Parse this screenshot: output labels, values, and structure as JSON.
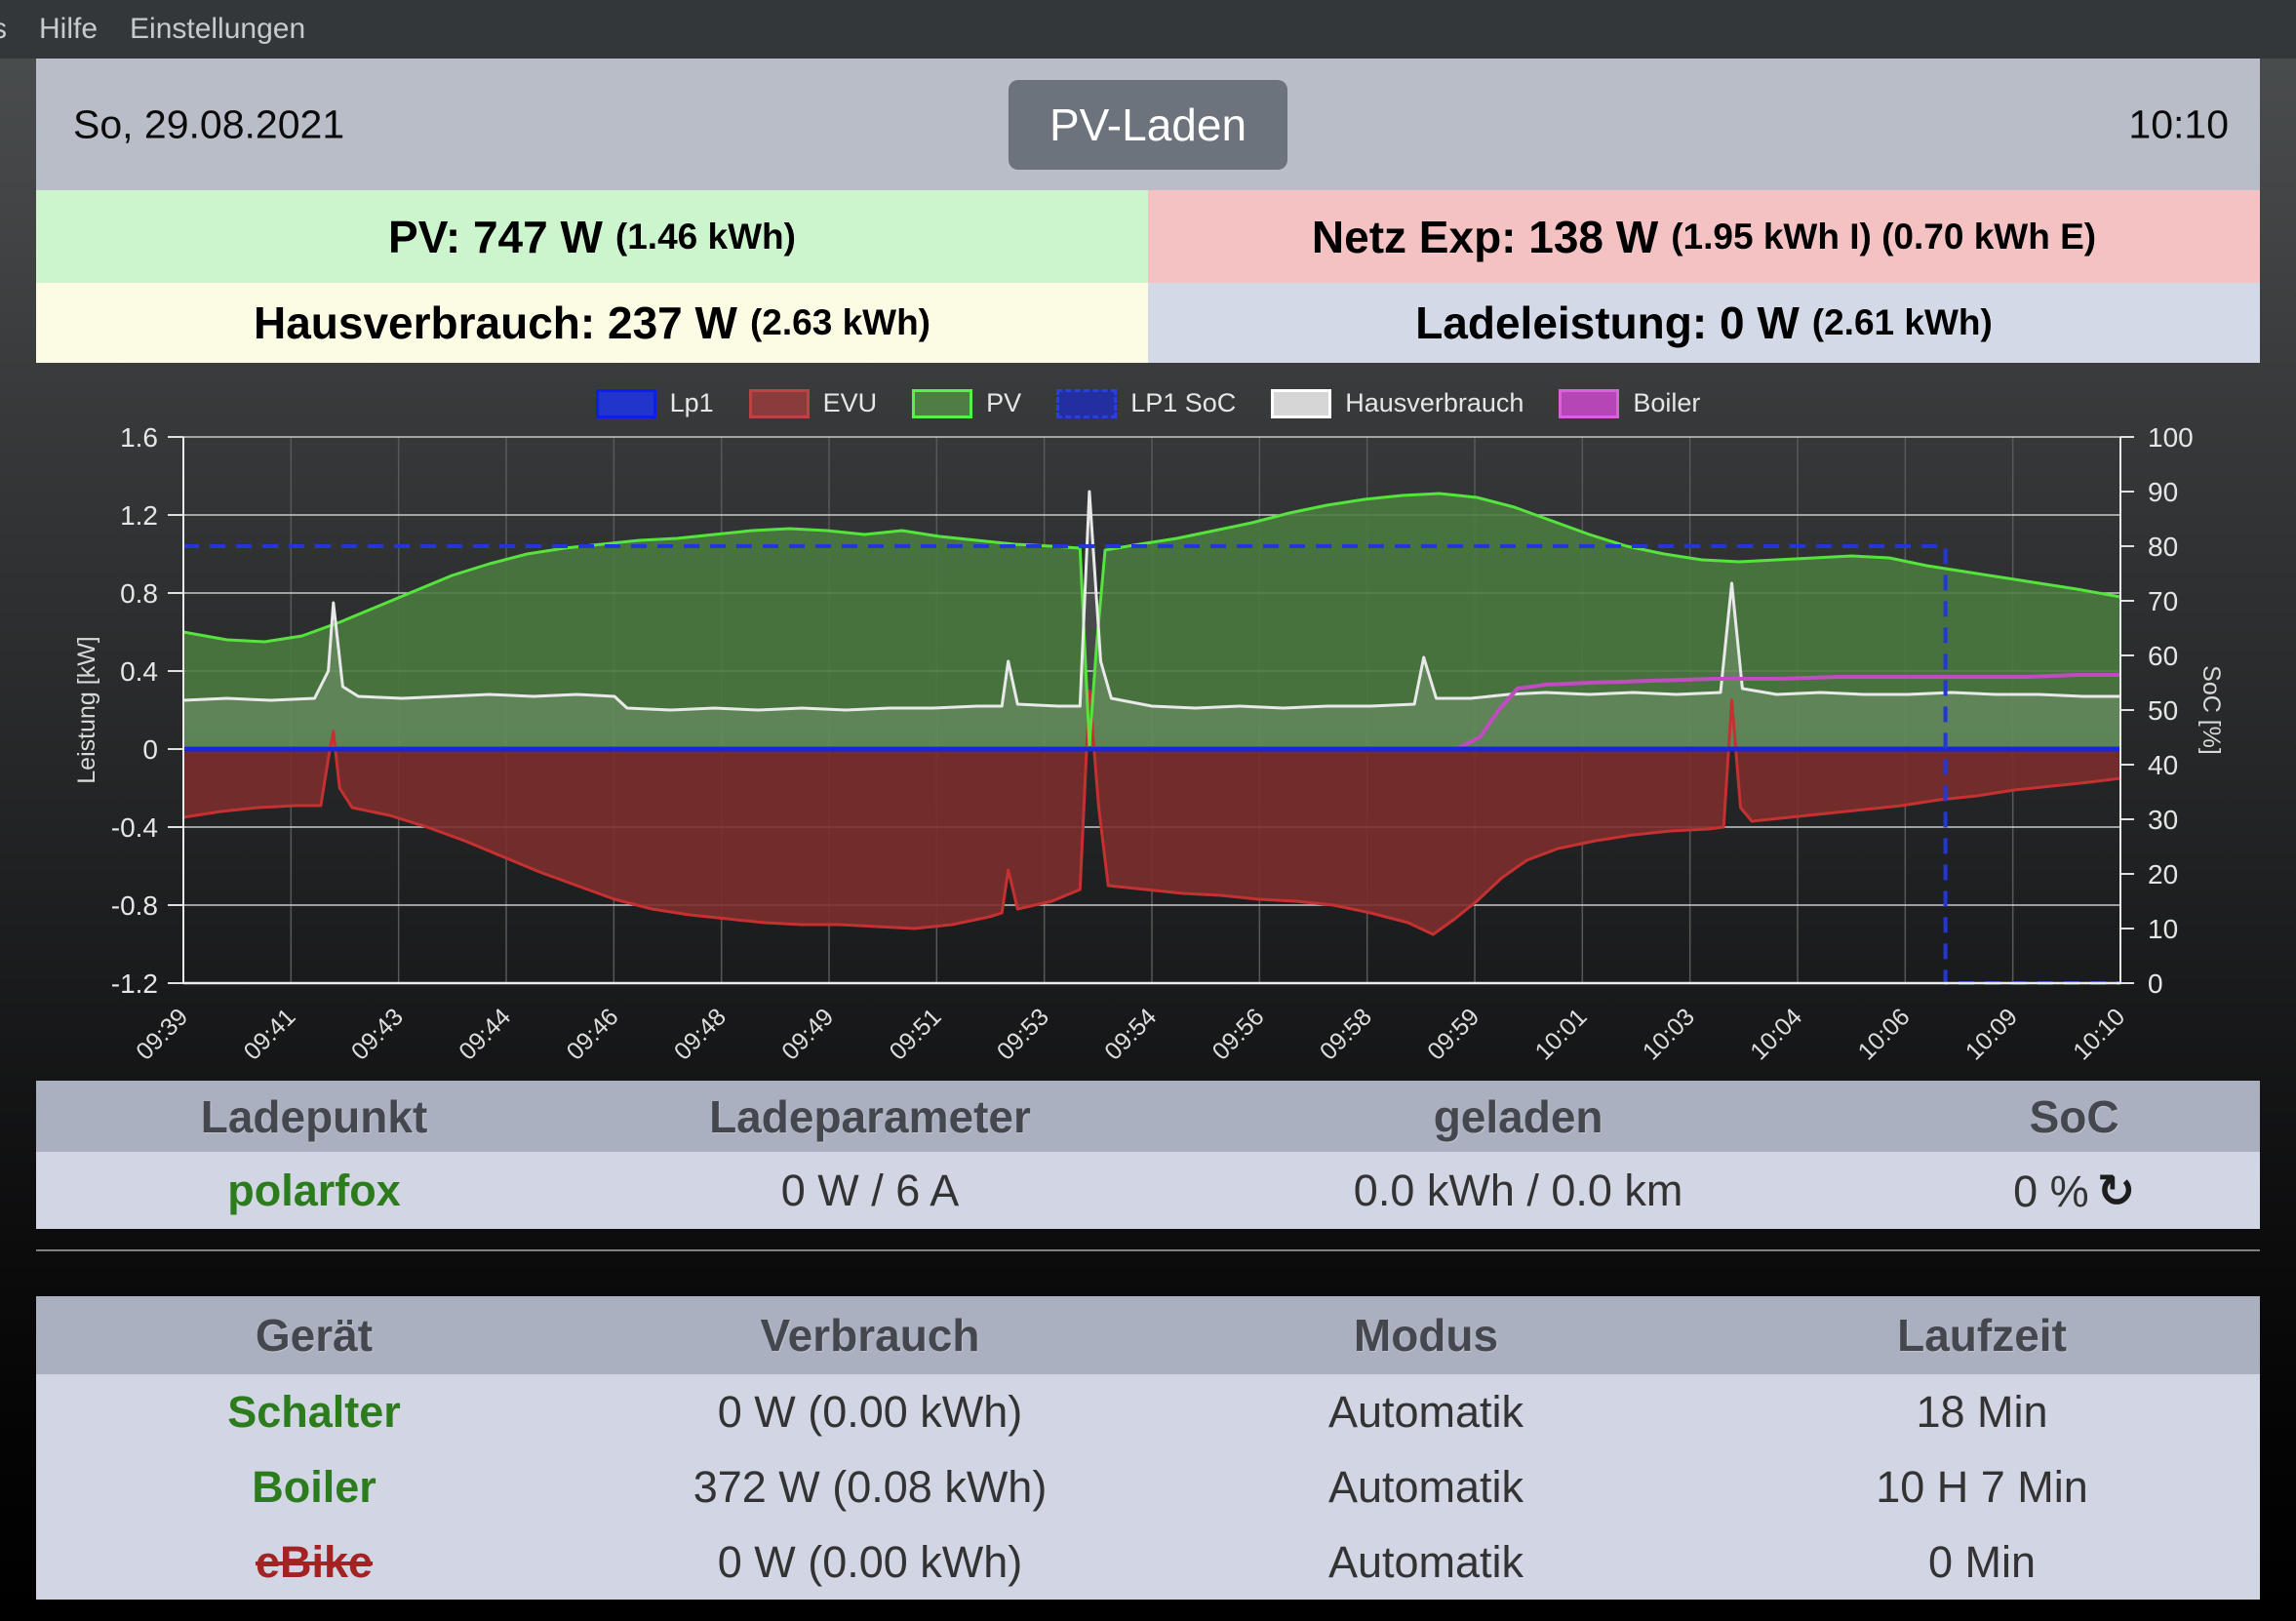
{
  "menubar": {
    "items": [
      "s",
      "Hilfe",
      "Einstellungen"
    ]
  },
  "header": {
    "date": "So, 29.08.2021",
    "mode_button": "PV-Laden",
    "time": "10:10"
  },
  "status": {
    "pv": {
      "main": "PV: 747 W",
      "sub": "(1.46 kWh)",
      "bg": "#ccf5cd"
    },
    "grid": {
      "main": "Netz Exp: 138 W",
      "sub": "(1.95 kWh I) (0.70 kWh E)",
      "bg": "#f4c2c3"
    },
    "house": {
      "main": "Hausverbrauch: 237 W",
      "sub": "(2.63 kWh)",
      "bg": "#fcfbe3"
    },
    "charge": {
      "main": "Ladeleistung: 0 W",
      "sub": "(2.61 kWh)",
      "bg": "#d3d9e7"
    }
  },
  "chart_data": {
    "type": "line",
    "x_labels": [
      "09:39",
      "09:41",
      "09:43",
      "09:44",
      "09:46",
      "09:48",
      "09:49",
      "09:51",
      "09:53",
      "09:54",
      "09:56",
      "09:58",
      "09:59",
      "10:01",
      "10:03",
      "10:04",
      "10:06",
      "10:09",
      "10:10"
    ],
    "x_range_minutes": [
      0,
      31
    ],
    "y_left": {
      "label": "Leistung [kW]",
      "min": -1.2,
      "max": 1.6,
      "ticks": [
        1.6,
        1.2,
        0.8,
        0.4,
        0,
        -0.4,
        -0.8,
        -1.2
      ]
    },
    "y_right": {
      "label": "SoC [%]",
      "min": 0,
      "max": 100,
      "ticks": [
        100,
        90,
        80,
        70,
        60,
        50,
        40,
        30,
        20,
        10,
        0
      ]
    },
    "grid": {
      "h_color": "#c9c9c9",
      "v_color": "#585858",
      "frame_color": "#ececec"
    },
    "legend": [
      {
        "label": "Lp1",
        "fill": "#2134cc",
        "border": "#0b1fe6",
        "dash": false
      },
      {
        "label": "EVU",
        "fill": "#8a3b3b",
        "border": "#bb4343",
        "dash": false
      },
      {
        "label": "PV",
        "fill": "#4f7d45",
        "border": "#55f24a",
        "dash": false
      },
      {
        "label": "LP1 SoC",
        "fill": "#232f9e",
        "border": "#2a3fe0",
        "dash": true
      },
      {
        "label": "Hausverbrauch",
        "fill": "#d6d6d6",
        "border": "#ffffff",
        "dash": false
      },
      {
        "label": "Boiler",
        "fill": "#b646b6",
        "border": "#d863d8",
        "dash": false
      }
    ],
    "series": [
      {
        "name": "EVU",
        "axis": "left",
        "draw": "area",
        "line_color": "#c53131",
        "line_width": 3,
        "fill_color": "#7c2e2e",
        "fill_opacity": 0.9,
        "points": [
          [
            0,
            -0.35
          ],
          [
            0.6,
            -0.32
          ],
          [
            1.2,
            -0.3
          ],
          [
            1.8,
            -0.29
          ],
          [
            2.2,
            -0.29
          ],
          [
            2.32,
            -0.05
          ],
          [
            2.4,
            0.09
          ],
          [
            2.5,
            -0.2
          ],
          [
            2.7,
            -0.3
          ],
          [
            3.3,
            -0.34
          ],
          [
            3.9,
            -0.4
          ],
          [
            4.5,
            -0.47
          ],
          [
            5.1,
            -0.55
          ],
          [
            5.7,
            -0.63
          ],
          [
            6.3,
            -0.7
          ],
          [
            6.9,
            -0.77
          ],
          [
            7.5,
            -0.82
          ],
          [
            8.1,
            -0.85
          ],
          [
            8.7,
            -0.87
          ],
          [
            9.3,
            -0.89
          ],
          [
            9.9,
            -0.9
          ],
          [
            10.5,
            -0.9
          ],
          [
            11.1,
            -0.91
          ],
          [
            11.7,
            -0.92
          ],
          [
            12.3,
            -0.9
          ],
          [
            12.9,
            -0.86
          ],
          [
            13.1,
            -0.84
          ],
          [
            13.2,
            -0.62
          ],
          [
            13.35,
            -0.82
          ],
          [
            13.9,
            -0.78
          ],
          [
            14.35,
            -0.72
          ],
          [
            14.5,
            0.3
          ],
          [
            14.65,
            -0.3
          ],
          [
            14.8,
            -0.7
          ],
          [
            15.4,
            -0.72
          ],
          [
            16,
            -0.74
          ],
          [
            16.6,
            -0.75
          ],
          [
            17.2,
            -0.77
          ],
          [
            17.8,
            -0.78
          ],
          [
            18.4,
            -0.8
          ],
          [
            19,
            -0.84
          ],
          [
            19.6,
            -0.89
          ],
          [
            20,
            -0.95
          ],
          [
            20.35,
            -0.87
          ],
          [
            20.7,
            -0.78
          ],
          [
            21.1,
            -0.66
          ],
          [
            21.5,
            -0.57
          ],
          [
            22,
            -0.51
          ],
          [
            22.6,
            -0.47
          ],
          [
            23.2,
            -0.44
          ],
          [
            23.8,
            -0.42
          ],
          [
            24.4,
            -0.41
          ],
          [
            24.65,
            -0.4
          ],
          [
            24.78,
            0.25
          ],
          [
            24.92,
            -0.3
          ],
          [
            25.1,
            -0.37
          ],
          [
            25.7,
            -0.35
          ],
          [
            26.3,
            -0.33
          ],
          [
            26.9,
            -0.31
          ],
          [
            27.5,
            -0.29
          ],
          [
            28.1,
            -0.26
          ],
          [
            28.7,
            -0.24
          ],
          [
            29.3,
            -0.21
          ],
          [
            29.9,
            -0.19
          ],
          [
            30.5,
            -0.17
          ],
          [
            31,
            -0.15
          ]
        ]
      },
      {
        "name": "PV",
        "axis": "left",
        "draw": "area",
        "line_color": "#56e33e",
        "line_width": 3,
        "fill_color": "#4a7a40",
        "fill_opacity": 0.9,
        "points": [
          [
            0,
            0.6
          ],
          [
            0.7,
            0.56
          ],
          [
            1.3,
            0.55
          ],
          [
            1.9,
            0.58
          ],
          [
            2.5,
            0.65
          ],
          [
            3.1,
            0.73
          ],
          [
            3.7,
            0.81
          ],
          [
            4.3,
            0.89
          ],
          [
            4.9,
            0.95
          ],
          [
            5.5,
            1.0
          ],
          [
            6.1,
            1.03
          ],
          [
            6.7,
            1.05
          ],
          [
            7.3,
            1.07
          ],
          [
            7.9,
            1.08
          ],
          [
            8.5,
            1.1
          ],
          [
            9.1,
            1.12
          ],
          [
            9.7,
            1.13
          ],
          [
            10.3,
            1.12
          ],
          [
            10.9,
            1.1
          ],
          [
            11.5,
            1.12
          ],
          [
            12.1,
            1.09
          ],
          [
            12.7,
            1.07
          ],
          [
            13.3,
            1.05
          ],
          [
            13.9,
            1.04
          ],
          [
            14.35,
            1.03
          ],
          [
            14.5,
            0.02
          ],
          [
            14.62,
            0.55
          ],
          [
            14.75,
            1.02
          ],
          [
            15.3,
            1.05
          ],
          [
            15.9,
            1.08
          ],
          [
            16.5,
            1.12
          ],
          [
            17.1,
            1.16
          ],
          [
            17.7,
            1.21
          ],
          [
            18.3,
            1.25
          ],
          [
            18.9,
            1.28
          ],
          [
            19.5,
            1.3
          ],
          [
            20.1,
            1.31
          ],
          [
            20.7,
            1.29
          ],
          [
            21.3,
            1.24
          ],
          [
            21.9,
            1.17
          ],
          [
            22.5,
            1.1
          ],
          [
            23.1,
            1.04
          ],
          [
            23.7,
            1.0
          ],
          [
            24.3,
            0.97
          ],
          [
            24.9,
            0.96
          ],
          [
            25.5,
            0.97
          ],
          [
            26.1,
            0.98
          ],
          [
            26.7,
            0.99
          ],
          [
            27.3,
            0.98
          ],
          [
            27.9,
            0.94
          ],
          [
            28.5,
            0.91
          ],
          [
            29.1,
            0.88
          ],
          [
            29.7,
            0.85
          ],
          [
            30.3,
            0.82
          ],
          [
            31,
            0.78
          ]
        ]
      },
      {
        "name": "Hausverbrauch",
        "axis": "left",
        "draw": "area",
        "line_color": "#e9e9e9",
        "line_width": 3,
        "fill_color": "#ffffff",
        "fill_opacity": 0.13,
        "points": [
          [
            0,
            0.25
          ],
          [
            0.7,
            0.26
          ],
          [
            1.4,
            0.25
          ],
          [
            2.1,
            0.26
          ],
          [
            2.32,
            0.4
          ],
          [
            2.4,
            0.75
          ],
          [
            2.55,
            0.32
          ],
          [
            2.8,
            0.27
          ],
          [
            3.5,
            0.26
          ],
          [
            4.2,
            0.27
          ],
          [
            4.9,
            0.28
          ],
          [
            5.6,
            0.27
          ],
          [
            6.3,
            0.28
          ],
          [
            6.9,
            0.27
          ],
          [
            7.1,
            0.21
          ],
          [
            7.8,
            0.2
          ],
          [
            8.5,
            0.21
          ],
          [
            9.2,
            0.2
          ],
          [
            9.9,
            0.21
          ],
          [
            10.6,
            0.2
          ],
          [
            11.3,
            0.21
          ],
          [
            12,
            0.21
          ],
          [
            12.7,
            0.22
          ],
          [
            13.1,
            0.22
          ],
          [
            13.2,
            0.45
          ],
          [
            13.35,
            0.23
          ],
          [
            14,
            0.22
          ],
          [
            14.35,
            0.22
          ],
          [
            14.5,
            1.32
          ],
          [
            14.68,
            0.45
          ],
          [
            14.85,
            0.26
          ],
          [
            15.5,
            0.22
          ],
          [
            16.2,
            0.21
          ],
          [
            16.9,
            0.22
          ],
          [
            17.6,
            0.21
          ],
          [
            18.3,
            0.22
          ],
          [
            19,
            0.22
          ],
          [
            19.7,
            0.23
          ],
          [
            19.85,
            0.47
          ],
          [
            20.05,
            0.26
          ],
          [
            20.6,
            0.26
          ],
          [
            21.2,
            0.28
          ],
          [
            21.8,
            0.29
          ],
          [
            22.5,
            0.28
          ],
          [
            23.2,
            0.29
          ],
          [
            23.9,
            0.28
          ],
          [
            24.6,
            0.29
          ],
          [
            24.78,
            0.85
          ],
          [
            24.95,
            0.31
          ],
          [
            25.5,
            0.28
          ],
          [
            26.2,
            0.29
          ],
          [
            26.9,
            0.28
          ],
          [
            27.6,
            0.28
          ],
          [
            28.3,
            0.29
          ],
          [
            29,
            0.28
          ],
          [
            29.7,
            0.28
          ],
          [
            30.4,
            0.27
          ],
          [
            31,
            0.27
          ]
        ]
      },
      {
        "name": "Boiler",
        "axis": "left",
        "draw": "line",
        "line_color": "#bf4dbf",
        "line_width": 4,
        "points": [
          [
            0,
            0.005
          ],
          [
            20.4,
            0.005
          ],
          [
            20.75,
            0.06
          ],
          [
            21.05,
            0.2
          ],
          [
            21.35,
            0.31
          ],
          [
            21.8,
            0.33
          ],
          [
            22.5,
            0.34
          ],
          [
            23.5,
            0.35
          ],
          [
            24.5,
            0.36
          ],
          [
            25.5,
            0.36
          ],
          [
            26.5,
            0.37
          ],
          [
            27.5,
            0.37
          ],
          [
            28.5,
            0.37
          ],
          [
            29.5,
            0.37
          ],
          [
            30.3,
            0.38
          ],
          [
            31,
            0.38
          ]
        ]
      },
      {
        "name": "Lp1",
        "axis": "left",
        "draw": "line",
        "line_color": "#1527d6",
        "line_width": 5,
        "points": [
          [
            0,
            0
          ],
          [
            31,
            0
          ]
        ]
      },
      {
        "name": "LP1 SoC",
        "axis": "right",
        "draw": "line",
        "dash": [
          16,
          11
        ],
        "line_color": "#2336d9",
        "line_width": 4,
        "points": [
          [
            0,
            80
          ],
          [
            28.2,
            80
          ],
          [
            28.2,
            0
          ],
          [
            31,
            0
          ]
        ]
      }
    ]
  },
  "charge_table": {
    "headers": [
      "Ladepunkt",
      "Ladeparameter",
      "geladen",
      "SoC"
    ],
    "row": {
      "name": "polarfox",
      "params": "0 W / 6 A",
      "charged": "0.0 kWh / 0.0 km",
      "soc": "0 %",
      "refresh_icon": "↻"
    }
  },
  "device_table": {
    "headers": [
      "Gerät",
      "Verbrauch",
      "Modus",
      "Laufzeit"
    ],
    "rows": [
      {
        "name": "Schalter",
        "consumption": "0 W (0.00 kWh)",
        "mode": "Automatik",
        "runtime": "18 Min",
        "state": "active"
      },
      {
        "name": "Boiler",
        "consumption": "372 W (0.08 kWh)",
        "mode": "Automatik",
        "runtime": "10 H 7 Min",
        "state": "active"
      },
      {
        "name": "eBike",
        "consumption": "0 W (0.00 kWh)",
        "mode": "Automatik",
        "runtime": "0 Min",
        "state": "disabled"
      }
    ]
  },
  "colors": {
    "menubar_bg": "#33373a",
    "header_bg": "#b9bdc8",
    "button_bg": "#6c737c",
    "table_header_bg": "#abb0c0",
    "table_row_bg": "#d2d6e4",
    "device_active": "#2c7c1e",
    "device_disabled": "#a32222"
  }
}
